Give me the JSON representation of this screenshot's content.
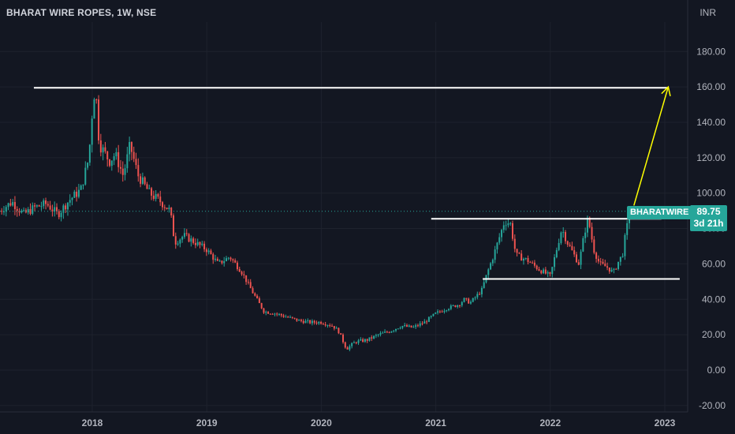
{
  "header": {
    "title": "BHARAT WIRE ROPES, 1W, NSE",
    "currency": "INR"
  },
  "price_tag": {
    "symbol": "BHARATWIRE",
    "last_price": "89.75",
    "countdown": "3d 21h"
  },
  "colors": {
    "background": "#131722",
    "up": "#26a69a",
    "down": "#ef5350",
    "drawing_white": "#ffffff",
    "drawing_arrow": "#ffff00",
    "grid": "#1e222d"
  },
  "chart_data": {
    "type": "candlestick",
    "title": "BHARAT WIRE ROPES, 1W, NSE",
    "y_unit": "INR",
    "ylim": [
      -25,
      195
    ],
    "y_ticks": [
      "-20.00",
      "0.00",
      "20.00",
      "40.00",
      "60.00",
      "80.00",
      "100.00",
      "120.00",
      "140.00",
      "160.00",
      "180.00"
    ],
    "x_ticks": [
      "2018",
      "2019",
      "2020",
      "2021",
      "2022",
      "2023"
    ],
    "xlim": [
      2017.19,
      2023.22
    ],
    "last_price": 89.75,
    "close_path": [
      [
        2017.19,
        90
      ],
      [
        2017.3,
        95
      ],
      [
        2017.4,
        88
      ],
      [
        2017.5,
        92
      ],
      [
        2017.6,
        94
      ],
      [
        2017.7,
        88
      ],
      [
        2017.8,
        96
      ],
      [
        2017.9,
        102
      ],
      [
        2017.97,
        120
      ],
      [
        2018.01,
        155
      ],
      [
        2018.03,
        158
      ],
      [
        2018.06,
        128
      ],
      [
        2018.15,
        118
      ],
      [
        2018.2,
        122
      ],
      [
        2018.27,
        110
      ],
      [
        2018.33,
        127
      ],
      [
        2018.4,
        110
      ],
      [
        2018.5,
        100
      ],
      [
        2018.6,
        95
      ],
      [
        2018.68,
        90
      ],
      [
        2018.72,
        72
      ],
      [
        2018.8,
        76
      ],
      [
        2018.9,
        72
      ],
      [
        2019.0,
        68
      ],
      [
        2019.1,
        60
      ],
      [
        2019.2,
        64
      ],
      [
        2019.3,
        56
      ],
      [
        2019.4,
        44
      ],
      [
        2019.5,
        33
      ],
      [
        2019.6,
        32
      ],
      [
        2019.7,
        30
      ],
      [
        2019.8,
        28
      ],
      [
        2019.9,
        27
      ],
      [
        2020.0,
        27
      ],
      [
        2020.1,
        25
      ],
      [
        2020.15,
        22
      ],
      [
        2020.22,
        12
      ],
      [
        2020.3,
        16
      ],
      [
        2020.4,
        17
      ],
      [
        2020.5,
        20
      ],
      [
        2020.6,
        22
      ],
      [
        2020.7,
        25
      ],
      [
        2020.8,
        24
      ],
      [
        2020.9,
        27
      ],
      [
        2021.0,
        32
      ],
      [
        2021.1,
        35
      ],
      [
        2021.2,
        37
      ],
      [
        2021.25,
        40
      ],
      [
        2021.3,
        38
      ],
      [
        2021.4,
        45
      ],
      [
        2021.45,
        55
      ],
      [
        2021.5,
        64
      ],
      [
        2021.55,
        74
      ],
      [
        2021.6,
        84
      ],
      [
        2021.65,
        83
      ],
      [
        2021.7,
        65
      ],
      [
        2021.8,
        62
      ],
      [
        2021.9,
        57
      ],
      [
        2022.0,
        53
      ],
      [
        2022.05,
        67
      ],
      [
        2022.1,
        80
      ],
      [
        2022.15,
        72
      ],
      [
        2022.2,
        66
      ],
      [
        2022.25,
        60
      ],
      [
        2022.3,
        78
      ],
      [
        2022.33,
        86
      ],
      [
        2022.38,
        68
      ],
      [
        2022.43,
        60
      ],
      [
        2022.5,
        58
      ],
      [
        2022.55,
        55
      ],
      [
        2022.6,
        62
      ],
      [
        2022.63,
        65
      ],
      [
        2022.66,
        78
      ],
      [
        2022.7,
        89.75
      ]
    ],
    "drawings": [
      {
        "type": "horizontal-line",
        "y": 159.5,
        "x_from": 2017.49,
        "x_to": 2023.02
      },
      {
        "type": "horizontal-line",
        "y": 85.5,
        "x_from": 2020.96,
        "x_to": 2022.97
      },
      {
        "type": "horizontal-line",
        "y": 51.5,
        "x_from": 2021.41,
        "x_to": 2023.13
      },
      {
        "type": "arrow",
        "from": [
          2022.73,
          93
        ],
        "to": [
          2023.03,
          160
        ]
      }
    ]
  }
}
